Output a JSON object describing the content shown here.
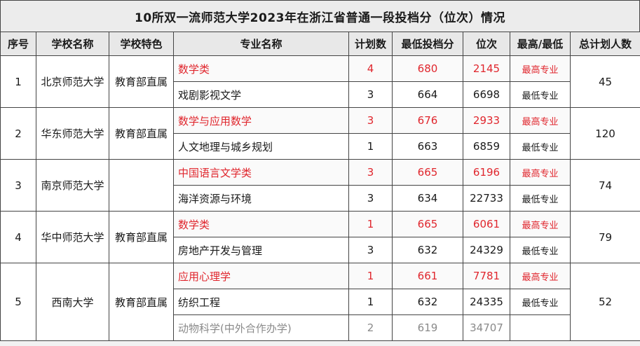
{
  "title": "10所双一流师范大学2023年在浙江省普通一段投档分（位次）情况",
  "headers": [
    "序号",
    "学校名称",
    "学校特色",
    "专业名称",
    "计划数",
    "最低投档分",
    "位次",
    "最高/最低",
    "总计划人数"
  ],
  "schools": [
    {
      "seq": "1",
      "name": "北京师范大学",
      "feature": "教育部直属",
      "total": "45",
      "rows": [
        {
          "major": "数学类",
          "plan": "4",
          "score": "680",
          "rank": "2145",
          "flag": "最高专业"
        },
        {
          "major": "戏剧影视文学",
          "plan": "3",
          "score": "664",
          "rank": "6698",
          "flag": "最低专业"
        }
      ]
    },
    {
      "seq": "2",
      "name": "华东师范大学",
      "feature": "教育部直属",
      "total": "120",
      "rows": [
        {
          "major": "数学与应用数学",
          "plan": "3",
          "score": "676",
          "rank": "2933",
          "flag": "最高专业"
        },
        {
          "major": "人文地理与城乡规划",
          "plan": "1",
          "score": "663",
          "rank": "6859",
          "flag": "最低专业"
        }
      ]
    },
    {
      "seq": "3",
      "name": "南京师范大学",
      "feature": "",
      "total": "74",
      "rows": [
        {
          "major": "中国语言文学类",
          "plan": "3",
          "score": "665",
          "rank": "6196",
          "flag": "最高专业"
        },
        {
          "major": "海洋资源与环境",
          "plan": "3",
          "score": "634",
          "rank": "22733",
          "flag": "最低专业"
        }
      ]
    },
    {
      "seq": "4",
      "name": "华中师范大学",
      "feature": "教育部直属",
      "total": "79",
      "rows": [
        {
          "major": "数学类",
          "plan": "1",
          "score": "665",
          "rank": "6061",
          "flag": "最高专业"
        },
        {
          "major": "房地产开发与管理",
          "plan": "3",
          "score": "632",
          "rank": "24329",
          "flag": "最低专业"
        }
      ]
    },
    {
      "seq": "5",
      "name": "西南大学",
      "feature": "教育部直属",
      "total": "52",
      "rows": [
        {
          "major": "应用心理学",
          "plan": "1",
          "score": "661",
          "rank": "7781",
          "flag": "最高专业"
        },
        {
          "major": "纺织工程",
          "plan": "1",
          "score": "632",
          "rank": "24335",
          "flag": "最低专业"
        },
        {
          "major": "动物科学(中外合作办学)",
          "plan": "2",
          "score": "619",
          "rank": "34707",
          "flag": ""
        }
      ]
    }
  ],
  "colors": {
    "highlight": "#e0262d",
    "muted": "#8a8a8a",
    "header_bg": "#e8e8e8"
  }
}
